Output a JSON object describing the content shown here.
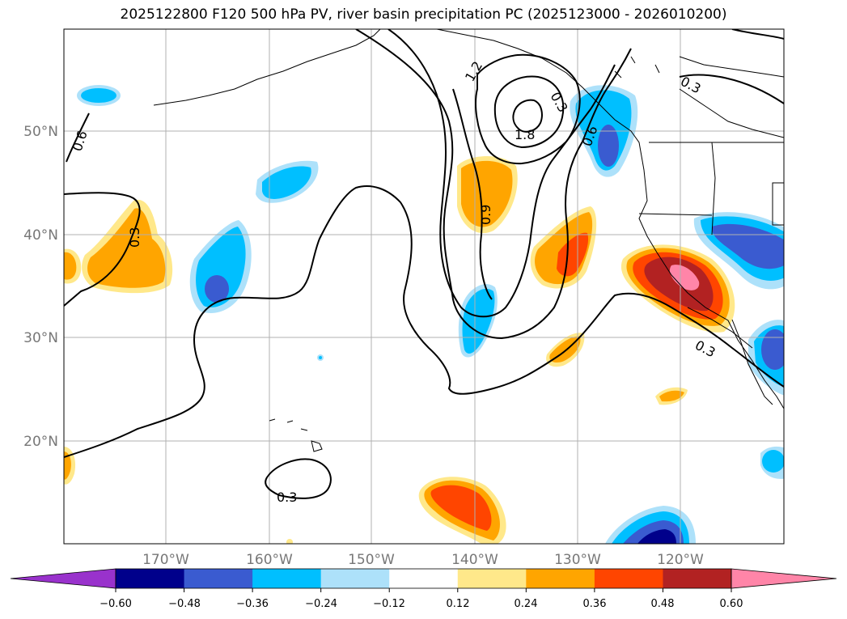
{
  "title": "2025122800 F120 500 hPa PV, river basin precipitation PC (2025123000 - 2026010200)",
  "lat_labels": [
    "50°N",
    "40°N",
    "30°N",
    "20°N"
  ],
  "lon_labels": [
    "170°W",
    "160°W",
    "150°W",
    "140°W",
    "130°W",
    "120°W"
  ],
  "contour_labels": [
    "0.6",
    "1.2",
    "1.8",
    "0.9",
    "0.3",
    "0.3",
    "0.3",
    "0.3",
    "0.3",
    "0.6"
  ],
  "colorbar": {
    "ticks": [
      "−0.60",
      "−0.48",
      "−0.36",
      "−0.24",
      "−0.12",
      "0.12",
      "0.24",
      "0.36",
      "0.48",
      "0.60"
    ],
    "colors": [
      "#9932CC",
      "#00008B",
      "#3A5BD0",
      "#00BFFF",
      "#ADE1FA",
      "#FFFFFF",
      "#FFE88A",
      "#FFA500",
      "#FF4500",
      "#B22222",
      "#FF85A8"
    ]
  },
  "chart_data": {
    "type": "map",
    "title": "2025122800 F120 500 hPa PV, river basin precipitation PC (2025123000 - 2026010200)",
    "lon_range": [
      -180,
      -110
    ],
    "lat_range": [
      10,
      60
    ],
    "contour_field": "500 hPa PV",
    "contour_levels": [
      0.3,
      0.6,
      0.9,
      1.2,
      1.8
    ],
    "shading_field": "river basin precipitation PC",
    "shading_levels": [
      -0.6,
      -0.48,
      -0.36,
      -0.24,
      -0.12,
      0.12,
      0.24,
      0.36,
      0.48,
      0.6
    ],
    "colorbar_extend": "both"
  }
}
